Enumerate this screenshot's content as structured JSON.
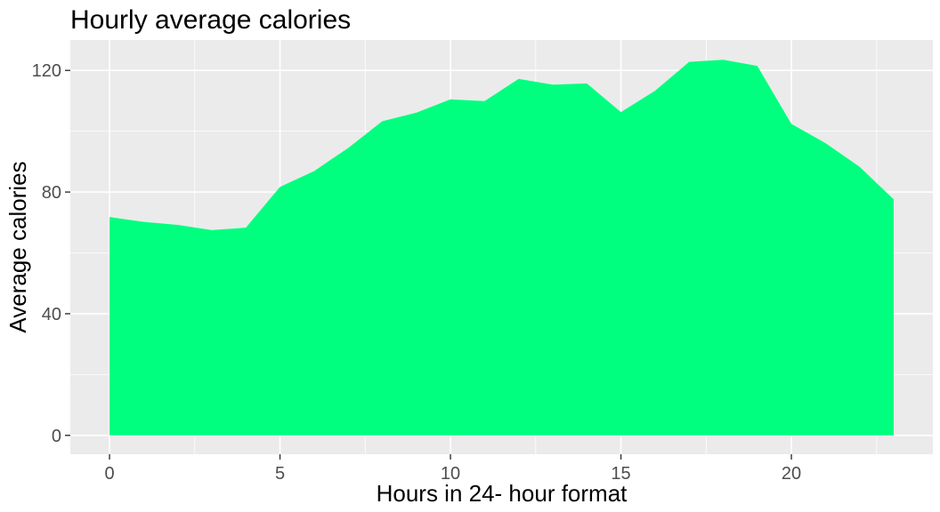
{
  "colors": {
    "panel_background": "#EBEBEB",
    "grid_major": "#FFFFFF",
    "area_fill": "#00FF7F",
    "tick_text": "#4D4D4D",
    "tick_mark": "#333333"
  },
  "chart_data": {
    "type": "area",
    "title": "Hourly average calories",
    "xlabel": "Hours in 24- hour format",
    "ylabel": "Average calories",
    "x": [
      0,
      1,
      2,
      3,
      4,
      5,
      6,
      7,
      8,
      9,
      10,
      11,
      12,
      13,
      14,
      15,
      16,
      17,
      18,
      19,
      20,
      21,
      22,
      23
    ],
    "series": [
      {
        "values": [
          71.8,
          70.2,
          69.2,
          67.5,
          68.3,
          81.7,
          86.9,
          94.5,
          103.3,
          106.1,
          110.5,
          109.9,
          117.2,
          115.3,
          115.7,
          106.3,
          113.3,
          122.8,
          123.5,
          121.5,
          102.4,
          96.1,
          88.3,
          77.6
        ]
      }
    ],
    "xlim": [
      -1.15,
      24.15
    ],
    "ylim": [
      -6.2,
      130
    ],
    "x_ticks": [
      0,
      5,
      10,
      15,
      20
    ],
    "x_tick_labels": [
      "0",
      "5",
      "10",
      "15",
      "20"
    ],
    "x_minor_grid": [
      2.5,
      7.5,
      12.5,
      17.5,
      22.5
    ],
    "y_ticks": [
      0,
      40,
      80,
      120
    ],
    "y_tick_labels": [
      "0",
      "40",
      "80",
      "120"
    ],
    "y_minor_grid": [
      20,
      60,
      100
    ],
    "grid": true,
    "legend": "none"
  }
}
